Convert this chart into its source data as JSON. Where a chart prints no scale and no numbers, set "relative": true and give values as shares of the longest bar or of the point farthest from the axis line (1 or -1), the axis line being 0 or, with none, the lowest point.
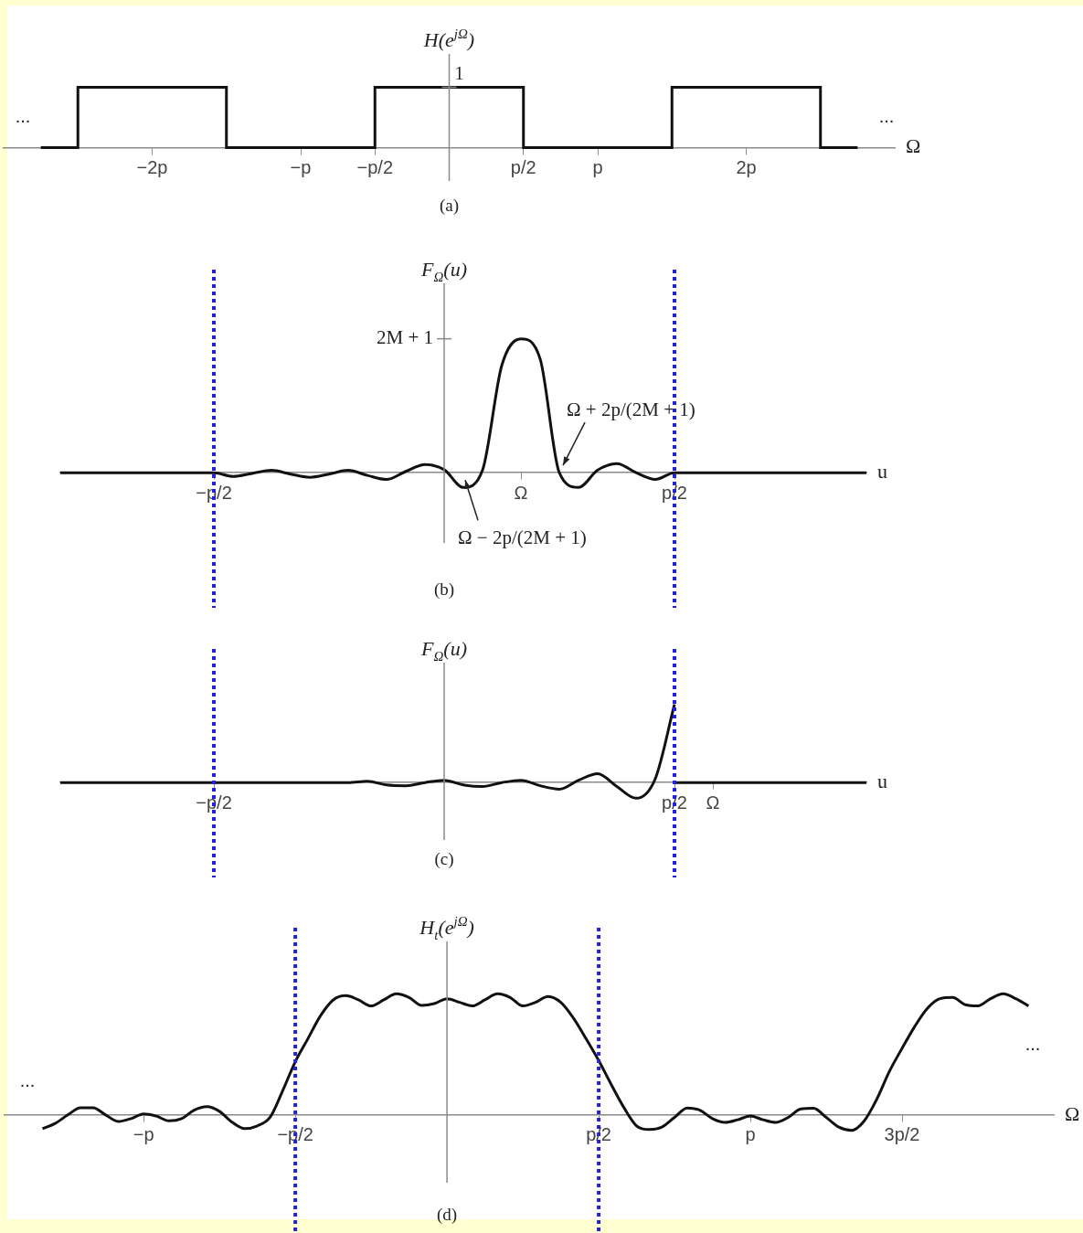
{
  "chart_data": [
    {
      "type": "step",
      "relative": true,
      "color": "#111111",
      "ylabel": "H(e$^{jΩ}$)",
      "xlabel": "Ω",
      "categories": [
        null,
        null,
        null,
        null,
        "−2p",
        null,
        null,
        null,
        "−p",
        null,
        "−p/2",
        null,
        null,
        null,
        "p/2",
        null,
        "p",
        null,
        null,
        null,
        "2p",
        null,
        null,
        null,
        null
      ],
      "values": [
        null,
        0,
        1,
        1,
        1,
        1,
        0,
        0,
        0,
        0,
        1,
        1,
        1,
        1,
        0,
        0,
        0,
        0,
        1,
        1,
        1,
        1,
        0,
        0,
        null
      ],
      "annotations": [
        "1",
        "...",
        "...",
        "(a)"
      ]
    },
    {
      "type": "line",
      "relative": true,
      "color": "#111111",
      "ylabel": "F$_{Ω}$(u)",
      "xlabel": "u",
      "categories": [
        null,
        null,
        null,
        null,
        null,
        null,
        null,
        null,
        "−p/2",
        null,
        null,
        null,
        null,
        null,
        null,
        null,
        null,
        null,
        null,
        null,
        null,
        null,
        null,
        null,
        "Ω",
        null,
        null,
        null,
        null,
        null,
        null,
        null,
        "p/2",
        null,
        null,
        null,
        null,
        null,
        null,
        null,
        null,
        null,
        null
      ],
      "values": [
        0,
        0,
        0,
        0,
        0,
        0,
        0,
        0,
        0,
        -0.028,
        -0.005,
        0.018,
        -0.01,
        -0.034,
        -0.01,
        0.018,
        -0.02,
        -0.05,
        0.01,
        0.062,
        0.023,
        -0.11,
        0.02,
        0.8,
        1,
        0.85,
        0,
        -0.11,
        0.02,
        0.068,
        0,
        -0.05,
        0,
        0,
        0,
        0,
        0,
        0,
        0,
        0,
        0,
        0,
        0
      ],
      "ref_lines": [
        {
          "axis": "x",
          "value": "−p/2",
          "color": "#2222dd",
          "line_style": "dotted"
        },
        {
          "axis": "x",
          "value": "p/2",
          "color": "#2222dd",
          "line_style": "dotted"
        }
      ],
      "annotations": [
        "2M + 1",
        "Ω + 2p/(2M + 1)",
        "Ω − 2p/(2M + 1)",
        "(b)"
      ]
    },
    {
      "type": "line",
      "relative": true,
      "ylabel": "F$_{Ω}$(u)",
      "xlabel": "u",
      "categories": [
        null,
        null,
        null,
        null,
        null,
        null,
        null,
        null,
        "−p/2",
        null,
        null,
        null,
        null,
        null,
        null,
        null,
        null,
        null,
        null,
        null,
        null,
        null,
        null,
        null,
        null,
        null,
        null,
        null,
        null,
        null,
        null,
        null,
        "p/2",
        null,
        "Ω",
        null,
        null,
        null,
        null,
        null,
        null,
        null,
        null
      ],
      "series": [
        {
          "color": "#111111",
          "values": [
            0,
            0,
            0,
            0,
            0,
            0,
            0,
            0,
            0,
            0,
            0,
            0,
            0,
            0,
            0,
            0,
            0.018,
            -0.03,
            -0.04,
            0,
            0.03,
            -0.03,
            -0.05,
            0,
            0.03,
            -0.04,
            -0.084,
            0.03,
            0.114,
            -0.05,
            -0.2,
            0.05,
            1,
            null,
            null,
            null,
            null,
            null,
            null,
            null,
            null,
            null,
            null
          ]
        },
        {
          "color": "#111111",
          "values": [
            null,
            null,
            null,
            null,
            null,
            null,
            null,
            null,
            null,
            null,
            null,
            null,
            null,
            null,
            null,
            null,
            null,
            null,
            null,
            null,
            null,
            null,
            null,
            null,
            null,
            null,
            null,
            null,
            null,
            null,
            null,
            null,
            0,
            0,
            0,
            0,
            0,
            0,
            0,
            0,
            0,
            0,
            0
          ]
        }
      ],
      "ref_lines": [
        {
          "axis": "x",
          "value": "−p/2",
          "color": "#2222dd",
          "line_style": "dotted"
        },
        {
          "axis": "x",
          "value": "p/2",
          "color": "#2222dd",
          "line_style": "dotted"
        }
      ],
      "annotations": [
        "(c)"
      ]
    },
    {
      "type": "line",
      "relative": true,
      "color": "#111111",
      "ylabel": "H$_{t}$(e$^{jΩ}$)",
      "xlabel": "Ω",
      "categories": [
        null,
        null,
        null,
        null,
        null,
        null,
        null,
        null,
        null,
        null,
        null,
        "−p",
        null,
        null,
        null,
        null,
        null,
        null,
        null,
        null,
        null,
        null,
        null,
        "−p/2",
        null,
        null,
        null,
        null,
        null,
        null,
        null,
        null,
        null,
        null,
        null,
        null,
        null,
        null,
        null,
        null,
        null,
        null,
        null,
        null,
        null,
        null,
        null,
        "p/2",
        null,
        null,
        null,
        null,
        null,
        null,
        null,
        null,
        null,
        null,
        null,
        "p",
        null,
        null,
        null,
        null,
        null,
        null,
        null,
        null,
        null,
        null,
        null,
        "3p/2",
        null,
        null,
        null,
        null,
        null,
        null,
        null,
        null,
        null,
        null,
        null,
        null
      ],
      "values": [
        null,
        null,
        null,
        -0.114,
        -0.07,
        0,
        0.06,
        0.06,
        0,
        -0.054,
        -0.03,
        0.008,
        -0.01,
        -0.048,
        -0.03,
        0.04,
        0.068,
        0.03,
        -0.06,
        -0.113,
        -0.09,
        -0.02,
        0.2,
        0.44,
        0.63,
        0.82,
        0.95,
        0.985,
        0.95,
        0.9,
        0.95,
        1,
        0.97,
        0.905,
        0.92,
        0.959,
        0.93,
        0.9,
        0.95,
        1,
        0.97,
        0.9,
        0.93,
        0.978,
        0.93,
        0.8,
        0.63,
        0.45,
        0.25,
        0.06,
        -0.09,
        -0.12,
        -0.1,
        -0.02,
        0.058,
        0.04,
        -0.03,
        -0.062,
        -0.04,
        -0.008,
        -0.04,
        -0.062,
        -0.02,
        0.05,
        0.055,
        -0.02,
        -0.1,
        -0.127,
        -0.05,
        0.13,
        0.36,
        0.55,
        0.73,
        0.88,
        0.96,
        0.97,
        0.91,
        0.9,
        0.96,
        1,
        0.96,
        0.9,
        null,
        null
      ],
      "ref_lines": [
        {
          "axis": "x",
          "value": "−p/2",
          "color": "#2222dd",
          "line_style": "dotted"
        },
        {
          "axis": "x",
          "value": "p/2",
          "color": "#2222dd",
          "line_style": "dotted"
        }
      ],
      "annotations": [
        "...",
        "...",
        "(d)"
      ]
    }
  ]
}
